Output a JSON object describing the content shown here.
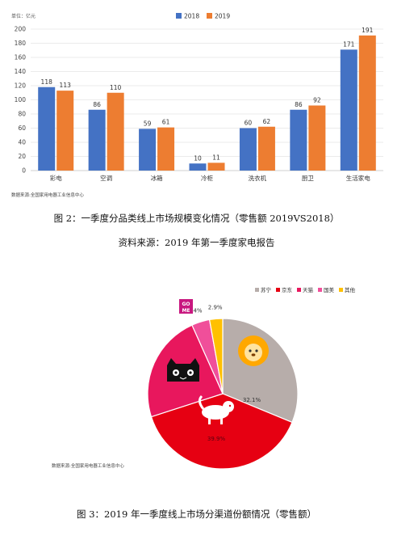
{
  "chart_data": [
    {
      "type": "bar",
      "unit_label": "单位：亿元",
      "categories": [
        "彩电",
        "空调",
        "冰箱",
        "冷柜",
        "洗衣机",
        "厨卫",
        "生活家电"
      ],
      "series": [
        {
          "name": "2018",
          "values": [
            118,
            86,
            59,
            10,
            60,
            86,
            171
          ],
          "color": "#4472C4"
        },
        {
          "name": "2019",
          "values": [
            113,
            110,
            61,
            11,
            62,
            92,
            191
          ],
          "color": "#ED7D31"
        }
      ],
      "ylim": [
        0,
        200
      ],
      "yticks": [
        0,
        20,
        40,
        60,
        80,
        100,
        120,
        140,
        160,
        180,
        200
      ],
      "grid": true,
      "legend": "top-right",
      "source": "数据来源:全国家用电器工业信息中心"
    },
    {
      "type": "pie",
      "slices": [
        {
          "name": "苏宁",
          "value": 32.1,
          "label": "32.1%",
          "color": "#B7ADAA"
        },
        {
          "name": "京东",
          "value": 39.9,
          "label": "39.9%",
          "color": "#E60012"
        },
        {
          "name": "天猫",
          "value": 23.9,
          "label": "23.9%",
          "color": "#E8175D"
        },
        {
          "name": "国美",
          "value": 4,
          "label": "4%",
          "color": "#F04F9A"
        },
        {
          "name": "其他",
          "value": 2.9,
          "label": "2.9%",
          "color": "#FFC000"
        }
      ],
      "legend": "top-right",
      "source": "数据来源:全国家用电器工业信息中心",
      "logo_text": "GOME"
    }
  ],
  "captions": {
    "fig2": "图 2：一季度分品类线上市场规模变化情况（零售额 2019VS2018）",
    "fig2_source": "资料来源：2019 年第一季度家电报告",
    "fig3": "图 3：2019 年一季度线上市场分渠道份额情况（零售额）"
  }
}
